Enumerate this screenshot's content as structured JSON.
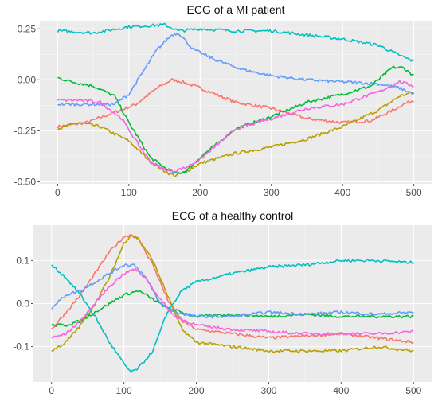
{
  "colors": {
    "panel_background": "#ebebeb",
    "grid_major": "#ffffff",
    "grid_minor": "#f5f5f5",
    "tick": "#4d4d4d"
  },
  "chart_data": [
    {
      "type": "line",
      "title": "ECG of a MI patient",
      "xlabel": "",
      "ylabel": "",
      "xlim": [
        -25,
        525
      ],
      "ylim": [
        -0.51,
        0.29
      ],
      "xticks": [
        0,
        100,
        200,
        300,
        400,
        500
      ],
      "yticks": [
        -0.5,
        -0.25,
        0.0,
        0.25
      ],
      "xtick_labels": [
        "0",
        "100",
        "200",
        "300",
        "400",
        "500"
      ],
      "ytick_labels": [
        "-0.50",
        "-0.25",
        "0.00",
        "0.25"
      ],
      "grid": true,
      "legend": "none",
      "series": [
        {
          "color": "#F8766D",
          "x": [
            0,
            40,
            80,
            110,
            140,
            160,
            175,
            200,
            250,
            300,
            350,
            400,
            440,
            470,
            485,
            500
          ],
          "y": [
            -0.23,
            -0.21,
            -0.16,
            -0.12,
            -0.04,
            0.0,
            -0.01,
            -0.04,
            -0.11,
            -0.14,
            -0.19,
            -0.21,
            -0.2,
            -0.15,
            -0.12,
            -0.1
          ]
        },
        {
          "color": "#B79F00",
          "x": [
            0,
            30,
            60,
            100,
            130,
            150,
            165,
            180,
            200,
            250,
            300,
            350,
            400,
            450,
            480,
            500
          ],
          "y": [
            -0.24,
            -0.21,
            -0.23,
            -0.3,
            -0.4,
            -0.45,
            -0.47,
            -0.45,
            -0.41,
            -0.36,
            -0.33,
            -0.29,
            -0.23,
            -0.15,
            -0.08,
            -0.06
          ]
        },
        {
          "color": "#00BA38",
          "x": [
            0,
            20,
            50,
            80,
            100,
            130,
            150,
            165,
            180,
            200,
            250,
            300,
            350,
            400,
            440,
            470,
            485,
            500
          ],
          "y": [
            0.01,
            -0.01,
            -0.03,
            -0.08,
            -0.21,
            -0.38,
            -0.43,
            -0.46,
            -0.45,
            -0.38,
            -0.24,
            -0.18,
            -0.11,
            -0.07,
            -0.03,
            0.06,
            0.06,
            0.02
          ]
        },
        {
          "color": "#00BFC4",
          "x": [
            0,
            50,
            100,
            150,
            170,
            200,
            250,
            300,
            350,
            400,
            450,
            480,
            500
          ],
          "y": [
            0.24,
            0.23,
            0.26,
            0.27,
            0.24,
            0.25,
            0.24,
            0.24,
            0.22,
            0.2,
            0.17,
            0.12,
            0.09
          ]
        },
        {
          "color": "#619CFF",
          "x": [
            0,
            30,
            60,
            80,
            100,
            120,
            140,
            160,
            170,
            190,
            220,
            260,
            300,
            350,
            400,
            450,
            480,
            500
          ],
          "y": [
            -0.12,
            -0.12,
            -0.12,
            -0.12,
            -0.07,
            0.04,
            0.15,
            0.22,
            0.23,
            0.15,
            0.1,
            0.05,
            0.02,
            0.0,
            -0.01,
            -0.02,
            -0.04,
            -0.07
          ]
        },
        {
          "color": "#F564E3",
          "x": [
            0,
            30,
            60,
            90,
            110,
            130,
            150,
            160,
            180,
            200,
            250,
            300,
            350,
            400,
            450,
            480,
            500
          ],
          "y": [
            -0.1,
            -0.1,
            -0.11,
            -0.19,
            -0.3,
            -0.4,
            -0.44,
            -0.45,
            -0.43,
            -0.39,
            -0.24,
            -0.19,
            -0.14,
            -0.12,
            -0.06,
            -0.01,
            -0.03
          ]
        }
      ]
    },
    {
      "type": "line",
      "title": "ECG of a healthy control",
      "xlabel": "",
      "ylabel": "",
      "xlim": [
        -25,
        525
      ],
      "ylim": [
        -0.182,
        0.182
      ],
      "xticks": [
        0,
        100,
        200,
        300,
        400,
        500
      ],
      "yticks": [
        -0.1,
        0.0,
        0.1
      ],
      "xtick_labels": [
        "0",
        "100",
        "200",
        "300",
        "400",
        "500"
      ],
      "ytick_labels": [
        "-0.1",
        "0.0",
        "0.1"
      ],
      "grid": true,
      "legend": "none",
      "series": [
        {
          "color": "#F8766D",
          "x": [
            0,
            20,
            40,
            60,
            80,
            100,
            110,
            120,
            140,
            160,
            180,
            200,
            250,
            300,
            350,
            400,
            450,
            500
          ],
          "y": [
            -0.06,
            -0.02,
            0.02,
            0.07,
            0.12,
            0.155,
            0.16,
            0.15,
            0.09,
            0.01,
            -0.04,
            -0.06,
            -0.07,
            -0.08,
            -0.075,
            -0.07,
            -0.08,
            -0.09
          ]
        },
        {
          "color": "#B79F00",
          "x": [
            0,
            20,
            40,
            60,
            80,
            100,
            110,
            120,
            140,
            160,
            180,
            200,
            250,
            300,
            350,
            400,
            450,
            500
          ],
          "y": [
            -0.11,
            -0.09,
            -0.05,
            0.0,
            0.06,
            0.14,
            0.16,
            0.15,
            0.1,
            0.02,
            -0.06,
            -0.09,
            -0.1,
            -0.11,
            -0.11,
            -0.11,
            -0.1,
            -0.11
          ]
        },
        {
          "color": "#00BA38",
          "x": [
            0,
            20,
            40,
            60,
            80,
            100,
            120,
            140,
            160,
            180,
            200,
            250,
            300,
            350,
            400,
            450,
            500
          ],
          "y": [
            -0.05,
            -0.05,
            -0.04,
            -0.02,
            0.0,
            0.02,
            0.03,
            0.01,
            -0.01,
            -0.02,
            -0.03,
            -0.025,
            -0.03,
            -0.025,
            -0.03,
            -0.03,
            -0.03
          ]
        },
        {
          "color": "#00BFC4",
          "x": [
            0,
            20,
            40,
            60,
            80,
            100,
            110,
            120,
            140,
            160,
            180,
            200,
            250,
            300,
            350,
            400,
            450,
            500
          ],
          "y": [
            0.09,
            0.06,
            0.02,
            -0.03,
            -0.09,
            -0.14,
            -0.16,
            -0.15,
            -0.11,
            -0.02,
            0.03,
            0.05,
            0.07,
            0.085,
            0.09,
            0.1,
            0.1,
            0.095
          ]
        },
        {
          "color": "#619CFF",
          "x": [
            0,
            20,
            40,
            60,
            80,
            100,
            115,
            130,
            150,
            170,
            200,
            250,
            300,
            350,
            400,
            450,
            500
          ],
          "y": [
            -0.01,
            0.02,
            0.03,
            0.05,
            0.07,
            0.09,
            0.09,
            0.06,
            0.0,
            -0.02,
            -0.03,
            -0.03,
            -0.02,
            -0.025,
            -0.02,
            -0.025,
            -0.02
          ]
        },
        {
          "color": "#F564E3",
          "x": [
            0,
            20,
            40,
            60,
            80,
            100,
            115,
            130,
            150,
            170,
            200,
            250,
            300,
            350,
            400,
            450,
            500
          ],
          "y": [
            -0.08,
            -0.07,
            -0.04,
            0.0,
            0.04,
            0.07,
            0.08,
            0.06,
            0.01,
            -0.03,
            -0.05,
            -0.06,
            -0.065,
            -0.07,
            -0.07,
            -0.07,
            -0.065
          ]
        }
      ]
    }
  ]
}
